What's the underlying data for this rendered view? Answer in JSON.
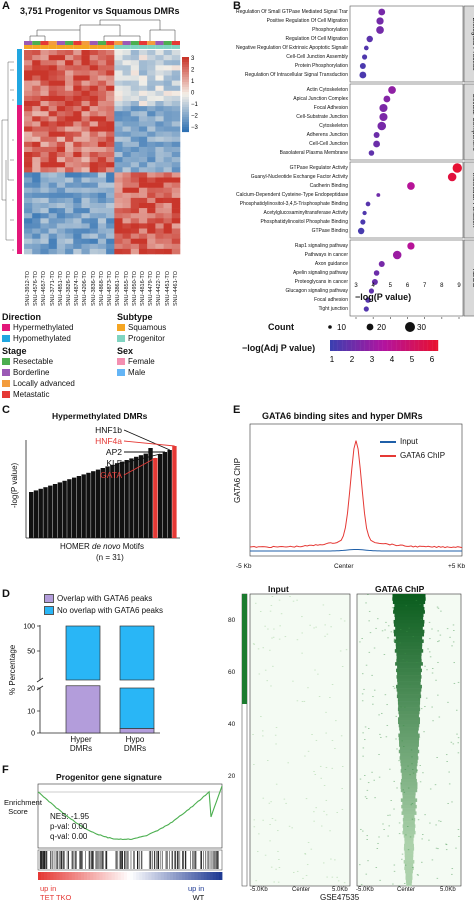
{
  "panels": {
    "A": {
      "label": "A",
      "title": "3,751 Progenitor vs Squamous DMRs",
      "samples": [
        "SNU-3912-TO",
        "SNU-4576-TO",
        "SNU-4657-TO",
        "SNU-3771-TO",
        "SNU-4851-TO",
        "SNU-3826-TO",
        "SNU-4874-TO",
        "SNU-4206-TO",
        "SNU-3836-TO",
        "SNU-4868-TO",
        "SNU-4873-TO",
        "SNU-3861-TO",
        "SNU-4855-TO",
        "SNU-4950-TO",
        "SNU-4816-TO",
        "SNU-4479-TO",
        "SNU-4422-TO",
        "SNU-4451-TO",
        "SNU-4461-TO"
      ],
      "scale_ticks": [
        "3",
        "2",
        "1",
        "0",
        "−1",
        "−2",
        "−3"
      ],
      "colors": {
        "high": "#c9362b",
        "mid": "#f4f0e8",
        "low": "#2f71b3"
      },
      "legend": {
        "direction_title": "Direction",
        "direction": [
          {
            "label": "Hypermethylated",
            "color": "#e3177a"
          },
          {
            "label": "Hypomethylated",
            "color": "#21a6e0"
          }
        ],
        "subtype_title": "Subtype",
        "subtype": [
          {
            "label": "Squamous",
            "color": "#f5a623"
          },
          {
            "label": "Progenitor",
            "color": "#7fd4c1"
          }
        ],
        "stage_title": "Stage",
        "stage": [
          {
            "label": "Resectable",
            "color": "#4caf50"
          },
          {
            "label": "Borderline",
            "color": "#9b59b6"
          },
          {
            "label": "Locally advanced",
            "color": "#f39c3d"
          },
          {
            "label": "Metastatic",
            "color": "#e53935"
          }
        ],
        "sex_title": "Sex",
        "sex": [
          {
            "label": "Female",
            "color": "#f48fb1"
          },
          {
            "label": "Male",
            "color": "#64b5f6"
          }
        ]
      }
    },
    "B": {
      "label": "B",
      "xlabel": "−log(P value)",
      "xticks": [
        "3",
        "4",
        "5",
        "6",
        "7",
        "8",
        "9"
      ],
      "facets": [
        {
          "name": "Biological Process",
          "terms": [
            "Regulation Of Small GTPase Mediated Signal Transduction",
            "Positive Regulation Of Cell Migration",
            "Phosphorylation",
            "Regulation Of Cell Migration",
            "Negative Regulation Of Extrinsic Apoptotic Signaling Pathway",
            "Cell-Cell Junction Assembly",
            "Protein Phosphorylation",
            "Regulation Of Intracellular Signal Transduction"
          ],
          "values": [
            4.5,
            4.4,
            4.4,
            3.8,
            3.6,
            3.5,
            3.4,
            3.4
          ],
          "counts": [
            18,
            20,
            22,
            16,
            8,
            10,
            14,
            18
          ]
        },
        {
          "name": "Cellular Component",
          "terms": [
            "Actin Cytoskeleton",
            "Apical Junction Complex",
            "Focal Adhesion",
            "Cell-Substrate Junction",
            "Cytoskeleton",
            "Adherens Junction",
            "Cell-Cell Junction",
            "Basolateral Plasma Membrane"
          ],
          "values": [
            5.1,
            4.8,
            4.6,
            4.6,
            4.5,
            4.2,
            4.2,
            3.9
          ],
          "counts": [
            22,
            18,
            24,
            24,
            26,
            14,
            18,
            12
          ]
        },
        {
          "name": "Molecular Function",
          "terms": [
            "GTPase Regulator Activity",
            "Guanyl-Nucleotide Exchange Factor Activity",
            "Cadherin Binding",
            "Calcium-Dependent Cysteine-Type Endopeptidase Activity",
            "Phosphatidylinositol-3,4,5-Trisphosphate Binding",
            "Acetylglucosaminyltransferase Activity",
            "Phosphatidylinositol Phosphate Binding",
            "GTPase Binding"
          ],
          "values": [
            8.9,
            8.6,
            6.2,
            4.3,
            3.7,
            3.5,
            3.4,
            3.3
          ],
          "counts": [
            30,
            26,
            22,
            4,
            8,
            6,
            10,
            16
          ]
        },
        {
          "name": "KEGG",
          "terms": [
            "Rap1 signaling pathway",
            "Pathways in cancer",
            "Axon guidance",
            "Apelin signaling pathway",
            "Proteoglycans in cancer",
            "Glucagon signaling pathway",
            "Focal adhesion",
            "Tight junction"
          ],
          "values": [
            6.2,
            5.4,
            4.5,
            4.2,
            4.1,
            3.9,
            3.7,
            3.6
          ],
          "counts": [
            20,
            26,
            14,
            12,
            14,
            10,
            12,
            10
          ]
        }
      ],
      "count_legend_title": "Count",
      "count_legend": [
        "10",
        "20",
        "30"
      ],
      "color_legend_title": "−log(Adj P value)",
      "color_legend_ticks": [
        "1",
        "2",
        "3",
        "4",
        "5",
        "6"
      ]
    },
    "C": {
      "label": "C",
      "title": "Hypermethylated DMRs",
      "ylabel": "-log(P value)",
      "xlabel_pre": "HOMER ",
      "xlabel_it": "de novo",
      "xlabel_post": " Motifs",
      "n": "(n = 31)",
      "motifs": [
        {
          "name": "HNF1b",
          "red": false
        },
        {
          "name": "HNF4a",
          "red": true
        },
        {
          "name": "AP2",
          "red": false
        },
        {
          "name": "KLF",
          "red": false
        },
        {
          "name": "GATA",
          "red": true
        }
      ]
    },
    "D": {
      "label": "D",
      "ylabel": "% Percentage",
      "legend": [
        {
          "label": "Overlap with GATA6 peaks",
          "color": "#b39ddb"
        },
        {
          "label": "No overlap with GATA6 peaks",
          "color": "#29b6f6"
        }
      ],
      "yticks_top": [
        "100",
        "50"
      ],
      "yticks_bottom": [
        "20",
        "10",
        "0"
      ],
      "groups": [
        {
          "label": "Hyper\nDMRs",
          "overlap": 21
        },
        {
          "label": "Hypo\nDMRs",
          "overlap": 2
        }
      ],
      "groups_line1": [
        "Hyper",
        "Hypo"
      ],
      "groups_line2": [
        "DMRs",
        "DMRs"
      ]
    },
    "E": {
      "label": "E",
      "title": "GATA6 binding sites and hyper DMRs",
      "ylabel": "GATA6 ChIP",
      "xticks": [
        "-5 Kb",
        "Center",
        "+5 Kb"
      ],
      "legend": [
        {
          "label": "Input",
          "color": "#1f5fa8"
        },
        {
          "label": "GATA6 ChIP",
          "color": "#e53935"
        }
      ],
      "heat_titles": [
        "Input",
        "GATA6 ChIP"
      ],
      "heat_yticks": [
        "80",
        "60",
        "40",
        "20"
      ],
      "heat_xticks": [
        "-5.0Kb",
        "Center",
        "5.0Kb"
      ],
      "source": "GSE47535"
    },
    "F": {
      "label": "F",
      "title": "Progenitor gene signature",
      "ylabel1": "Enrichment",
      "ylabel2": "Score",
      "nes": "NES: -1.95",
      "pval": "p-val: 0.00",
      "qval": "q-val: 0.00",
      "left1": "up in",
      "left2": "TET TKO",
      "right1": "up in",
      "right2": "WT",
      "curve_color": "#4caf50"
    }
  }
}
